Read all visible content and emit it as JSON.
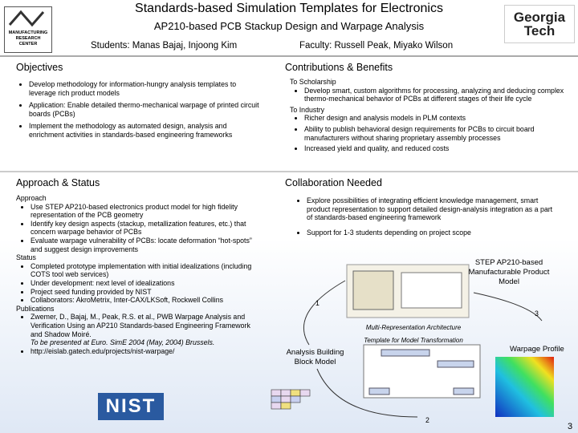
{
  "header": {
    "title": "Standards-based Simulation Templates for Electronics",
    "subtitle": "AP210-based PCB Stackup Design and Warpage Analysis",
    "students": "Students: Manas Bajaj, Injoong Kim",
    "faculty": "Faculty: Russell Peak, Miyako Wilson"
  },
  "logos": {
    "mrc": [
      "MANUFACTURING",
      "RESEARCH",
      "CENTER"
    ],
    "gt": [
      "Georgia",
      "Tech"
    ],
    "nist": "NIST"
  },
  "objectives": {
    "title": "Objectives",
    "items": [
      "Develop methodology for information-hungry analysis templates to leverage rich product models",
      "Application: Enable detailed thermo-mechanical warpage of printed circuit boards (PCBs)",
      "Implement the methodology as automated design, analysis and enrichment activities in standards-based engineering frameworks"
    ]
  },
  "contributions": {
    "title": "Contributions & Benefits",
    "groups": [
      {
        "heading": "To Scholarship",
        "items": [
          "Develop smart, custom algorithms for processing, analyzing and deducing complex thermo-mechanical behavior of PCBs at different stages of their life cycle"
        ]
      },
      {
        "heading": "To Industry",
        "items": [
          "Richer design and analysis models in PLM contexts",
          "Ability to publish behavioral design requirements for PCBs to circuit board manufacturers without sharing proprietary assembly processes",
          "Increased yield and quality, and reduced costs"
        ]
      }
    ]
  },
  "approach": {
    "title": "Approach & Status",
    "groups": [
      {
        "heading": "Approach",
        "items": [
          "Use STEP AP210-based electronics product model for high fidelity representation of the PCB geometry",
          "Identify key design aspects (stackup, metallization features, etc.) that concern warpage behavior of PCBs",
          "Evaluate warpage vulnerability of PCBs: locate deformation “hot-spots” and suggest design improvements"
        ]
      },
      {
        "heading": "Status",
        "items": [
          "Completed prototype implementation with initial idealizations (including COTS tool web services)",
          "Under development: next level of idealizations",
          "Project seed funding provided by NIST",
          "Collaborators: AkroMetrix, Inter-CAX/LKSoft, Rockwell Collins"
        ]
      },
      {
        "heading": "Publications",
        "items": [
          "Zwemer, D., Bajaj, M., Peak, R.S. et al., PWB Warpage Analysis and Verification Using an AP210 Standards-based Engineering Framework and Shadow Moiré.",
          "http://eislab.gatech.edu/projects/nist-warpage/"
        ],
        "note": "To be presented at Euro. SimE 2004 (May, 2004) Brussels."
      }
    ]
  },
  "collaboration": {
    "title": "Collaboration Needed",
    "items": [
      "Explore possibilities of integrating efficient knowledge management, smart product representation to support detailed design-analysis integration as a part of standards-based engineering framework",
      "Support for 1-3 students depending on project scope"
    ]
  },
  "diagram": {
    "product_model": "STEP AP210-based Manufacturable Product Model",
    "step1": "1",
    "step3": "3",
    "architecture": "Multi-Representation Architecture",
    "template": "Template for Model Transformation",
    "warpage": "Warpage Profile",
    "abb": "Analysis Building Block Model",
    "step2": "2"
  },
  "page_number": "3"
}
